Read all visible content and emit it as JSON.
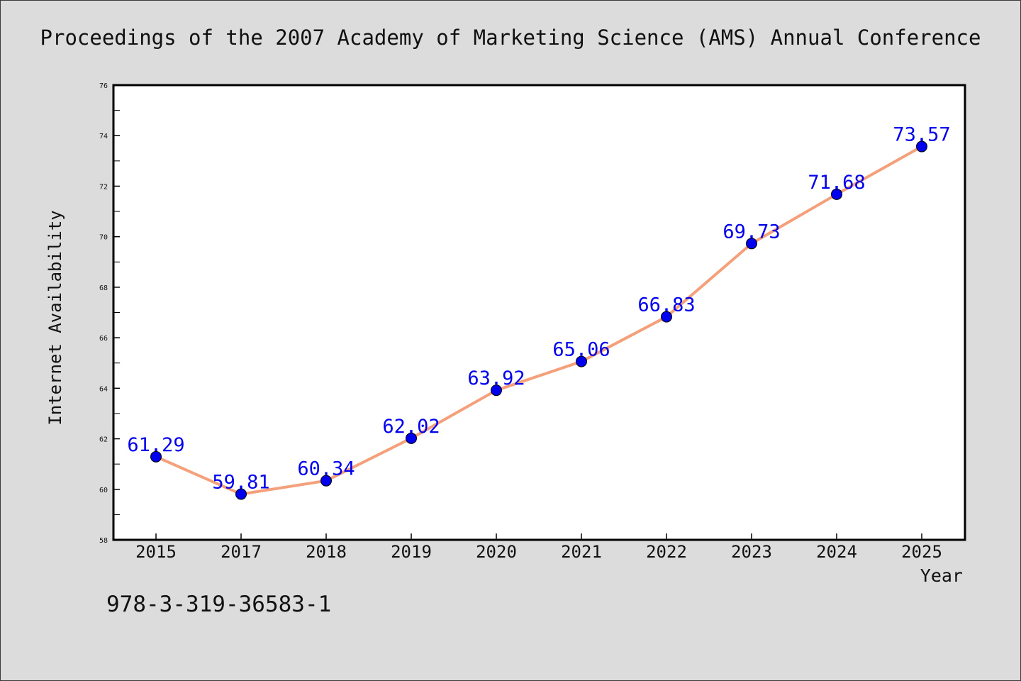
{
  "chart_data": {
    "type": "line",
    "title": "Proceedings of the 2007 Academy of Marketing Science (AMS) Annual Conference",
    "xlabel": "Year",
    "ylabel": "Internet Availability",
    "footer_text": "978-3-319-36583-1",
    "categories": [
      "2015",
      "2017",
      "2018",
      "2019",
      "2020",
      "2021",
      "2022",
      "2023",
      "2024",
      "2025"
    ],
    "series": [
      {
        "values": [
          61.29,
          59.81,
          60.34,
          62.02,
          63.92,
          65.06,
          66.83,
          69.73,
          71.68,
          73.57
        ],
        "data_labels": [
          "61.29",
          "59.81",
          "60.34",
          "62.02",
          "63.92",
          "65.06",
          "66.83",
          "69.73",
          "71.68",
          "73.57"
        ],
        "line_color": "#f4a07a",
        "marker_color": "#0000ee"
      }
    ],
    "ylim": [
      58,
      76
    ],
    "y_ticks": [
      "58",
      "60",
      "62",
      "64",
      "66",
      "68",
      "70",
      "72",
      "74",
      "76"
    ],
    "grid": false,
    "legend": "none",
    "label_color": "#0000ee",
    "background_color": "#dcdcdc",
    "plot_background_color": "#ffffff"
  }
}
